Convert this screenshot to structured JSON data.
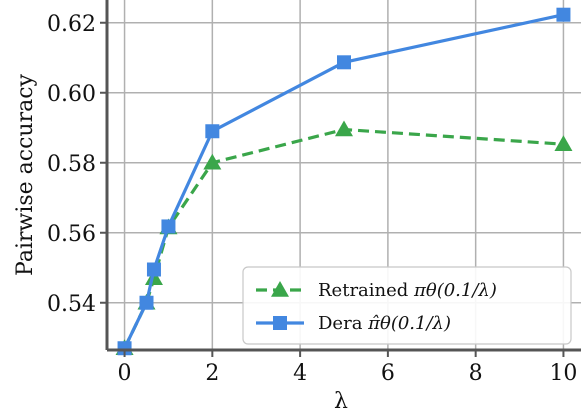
{
  "chart_data": {
    "type": "line",
    "xlabel": "λ",
    "ylabel": "Pairwise accuracy",
    "xlim": [
      -0.4,
      10.4
    ],
    "ylim": [
      0.5265,
      0.6265
    ],
    "xticks": [
      0,
      2,
      4,
      6,
      8,
      10
    ],
    "xtick_labels": [
      "0",
      "2",
      "4",
      "6",
      "8",
      "10"
    ],
    "yticks": [
      0.54,
      0.56,
      0.58,
      0.6,
      0.62
    ],
    "ytick_labels": [
      "0.54",
      "0.56",
      "0.58",
      "0.60",
      "0.62"
    ],
    "grid": true,
    "legend_position": "bottom-right",
    "series": [
      {
        "name_prefix": "Retrained",
        "name_math": "πθ(0.1/λ)",
        "color": "#3aa64a",
        "line_style": "dashed",
        "marker": "triangle",
        "x": [
          0,
          0.5,
          0.67,
          1,
          2,
          5,
          10
        ],
        "y": [
          0.527,
          0.54,
          0.547,
          0.5615,
          0.58,
          0.5895,
          0.5853
        ]
      },
      {
        "name_prefix": "Dera",
        "name_math": "π̂θ(0.1/λ)",
        "color": "#4287e0",
        "line_style": "solid",
        "marker": "square",
        "x": [
          0,
          0.5,
          0.67,
          1,
          2,
          5,
          10
        ],
        "y": [
          0.527,
          0.54,
          0.5495,
          0.5618,
          0.589,
          0.6087,
          0.6223
        ]
      }
    ]
  }
}
